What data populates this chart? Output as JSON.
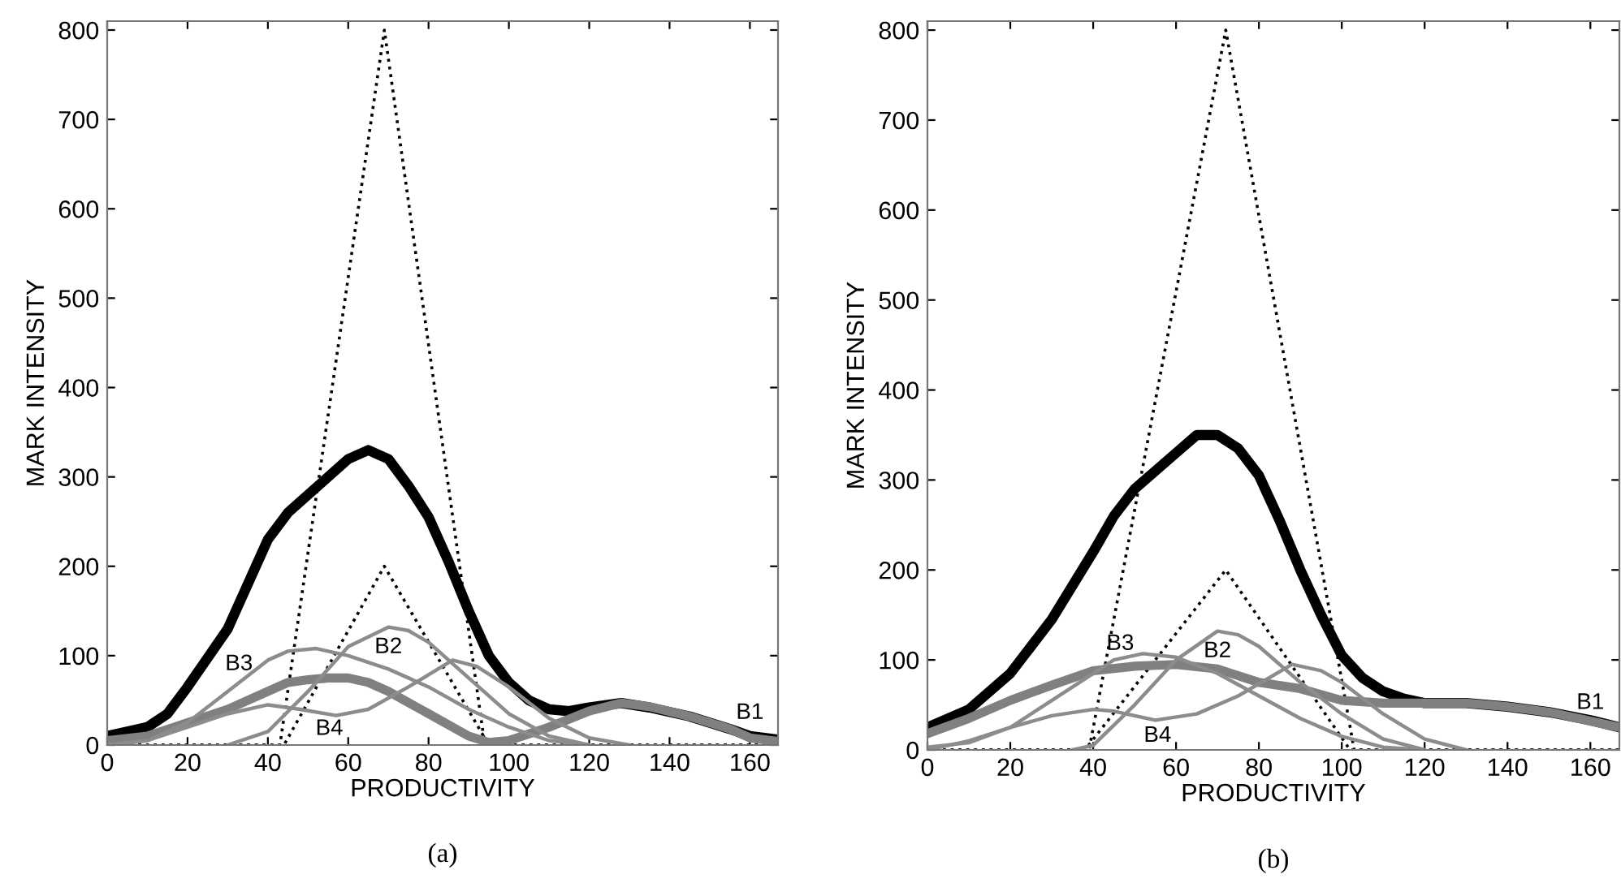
{
  "chart_data": [
    {
      "type": "line",
      "title": "(a)",
      "xlabel": "PRODUCTIVITY",
      "ylabel": "MARK INTENSITY",
      "xlim": [
        0,
        167
      ],
      "ylim": [
        0,
        810
      ],
      "xticks": [
        0,
        20,
        40,
        60,
        80,
        100,
        120,
        140,
        160
      ],
      "yticks": [
        0,
        100,
        200,
        300,
        400,
        500,
        600,
        700,
        800
      ],
      "grid": false,
      "legend": false,
      "marker": "none",
      "series": [
        {
          "color": "#000000",
          "line_style": "solid",
          "x": [
            0,
            10,
            15,
            20,
            30,
            40,
            45,
            50,
            55,
            60,
            65,
            70,
            75,
            80,
            85,
            90,
            95,
            100,
            105,
            110,
            115,
            120,
            128,
            135,
            145,
            155,
            160,
            167
          ],
          "values": [
            10,
            20,
            35,
            65,
            130,
            230,
            260,
            280,
            300,
            320,
            330,
            320,
            290,
            255,
            205,
            150,
            100,
            70,
            50,
            40,
            38,
            42,
            47,
            42,
            32,
            18,
            10,
            6
          ]
        },
        {
          "color": "#000000",
          "line_style": "dotted",
          "x": [
            0,
            43,
            69,
            94,
            167
          ],
          "values": [
            0,
            0,
            800,
            0,
            0
          ]
        },
        {
          "color": "#000000",
          "line_style": "dotted",
          "x": [
            0,
            44,
            69,
            95,
            167
          ],
          "values": [
            0,
            0,
            200,
            0,
            0
          ]
        },
        {
          "name": "B1",
          "color": "#808080",
          "line_style": "solid",
          "x": [
            0,
            10,
            20,
            30,
            40,
            45,
            50,
            55,
            60,
            65,
            70,
            80,
            90,
            95,
            100,
            110,
            120,
            128,
            135,
            145,
            155,
            160,
            167
          ],
          "values": [
            5,
            10,
            25,
            40,
            60,
            70,
            73,
            75,
            75,
            70,
            60,
            35,
            10,
            3,
            5,
            20,
            38,
            47,
            43,
            32,
            18,
            8,
            4
          ]
        },
        {
          "name": "B3",
          "color": "#8c8c8c",
          "line_style": "solid",
          "x": [
            0,
            10,
            20,
            30,
            40,
            45,
            52,
            60,
            70,
            80,
            90,
            100,
            110,
            120
          ],
          "values": [
            0,
            5,
            25,
            60,
            95,
            105,
            108,
            100,
            85,
            65,
            40,
            20,
            5,
            0
          ]
        },
        {
          "name": "B2",
          "color": "#8c8c8c",
          "line_style": "solid",
          "x": [
            30,
            40,
            50,
            60,
            70,
            75,
            80,
            90,
            100,
            110,
            120
          ],
          "values": [
            0,
            15,
            60,
            110,
            132,
            128,
            115,
            75,
            35,
            10,
            0
          ]
        },
        {
          "name": "B4",
          "color": "#8c8c8c",
          "line_style": "solid",
          "x": [
            0,
            10,
            20,
            30,
            40,
            48,
            57,
            65,
            75,
            86,
            92,
            100,
            110,
            120,
            130
          ],
          "values": [
            0,
            5,
            20,
            35,
            45,
            40,
            33,
            40,
            65,
            95,
            88,
            65,
            30,
            8,
            0
          ]
        }
      ]
    },
    {
      "type": "line",
      "title": "(b)",
      "xlabel": "PRODUCTIVITY",
      "ylabel": "MARK INTENSITY",
      "xlim": [
        0,
        167
      ],
      "ylim": [
        0,
        810
      ],
      "xticks": [
        0,
        20,
        40,
        60,
        80,
        100,
        120,
        140,
        160
      ],
      "yticks": [
        0,
        100,
        200,
        300,
        400,
        500,
        600,
        700,
        800
      ],
      "grid": false,
      "legend": false,
      "marker": "none",
      "series": [
        {
          "color": "#000000",
          "line_style": "solid",
          "x": [
            0,
            10,
            20,
            30,
            40,
            45,
            50,
            60,
            65,
            70,
            75,
            80,
            85,
            90,
            95,
            100,
            105,
            110,
            115,
            120,
            130,
            140,
            150,
            160,
            167
          ],
          "values": [
            25,
            45,
            85,
            145,
            220,
            260,
            290,
            330,
            350,
            350,
            335,
            305,
            255,
            200,
            150,
            105,
            80,
            65,
            57,
            52,
            52,
            48,
            42,
            33,
            25
          ]
        },
        {
          "color": "#000000",
          "line_style": "dotted",
          "x": [
            0,
            39,
            72,
            103,
            167
          ],
          "values": [
            0,
            0,
            800,
            0,
            0
          ]
        },
        {
          "color": "#000000",
          "line_style": "dotted",
          "x": [
            0,
            38,
            72,
            102,
            167
          ],
          "values": [
            0,
            0,
            200,
            0,
            0
          ]
        },
        {
          "name": "B1",
          "color": "#808080",
          "line_style": "solid",
          "x": [
            0,
            10,
            20,
            30,
            40,
            50,
            60,
            70,
            80,
            90,
            100,
            110,
            120,
            130,
            140,
            150,
            160,
            167
          ],
          "values": [
            18,
            35,
            55,
            72,
            88,
            93,
            95,
            90,
            75,
            68,
            55,
            52,
            52,
            52,
            48,
            42,
            32,
            25
          ]
        },
        {
          "name": "B3",
          "color": "#8c8c8c",
          "line_style": "solid",
          "x": [
            0,
            10,
            20,
            30,
            40,
            45,
            52,
            60,
            70,
            80,
            90,
            100,
            110,
            120
          ],
          "values": [
            3,
            8,
            25,
            55,
            85,
            100,
            107,
            103,
            85,
            60,
            35,
            15,
            3,
            0
          ]
        },
        {
          "name": "B2",
          "color": "#8c8c8c",
          "line_style": "solid",
          "x": [
            35,
            40,
            50,
            60,
            70,
            75,
            80,
            90,
            100,
            110,
            120
          ],
          "values": [
            0,
            5,
            50,
            100,
            132,
            128,
            115,
            75,
            40,
            12,
            0
          ]
        },
        {
          "name": "B4",
          "color": "#8c8c8c",
          "line_style": "solid",
          "x": [
            0,
            10,
            20,
            30,
            40,
            45,
            55,
            65,
            75,
            88,
            95,
            100,
            110,
            120,
            130
          ],
          "values": [
            0,
            10,
            25,
            38,
            45,
            43,
            33,
            40,
            60,
            95,
            88,
            75,
            40,
            12,
            0
          ]
        }
      ]
    }
  ]
}
